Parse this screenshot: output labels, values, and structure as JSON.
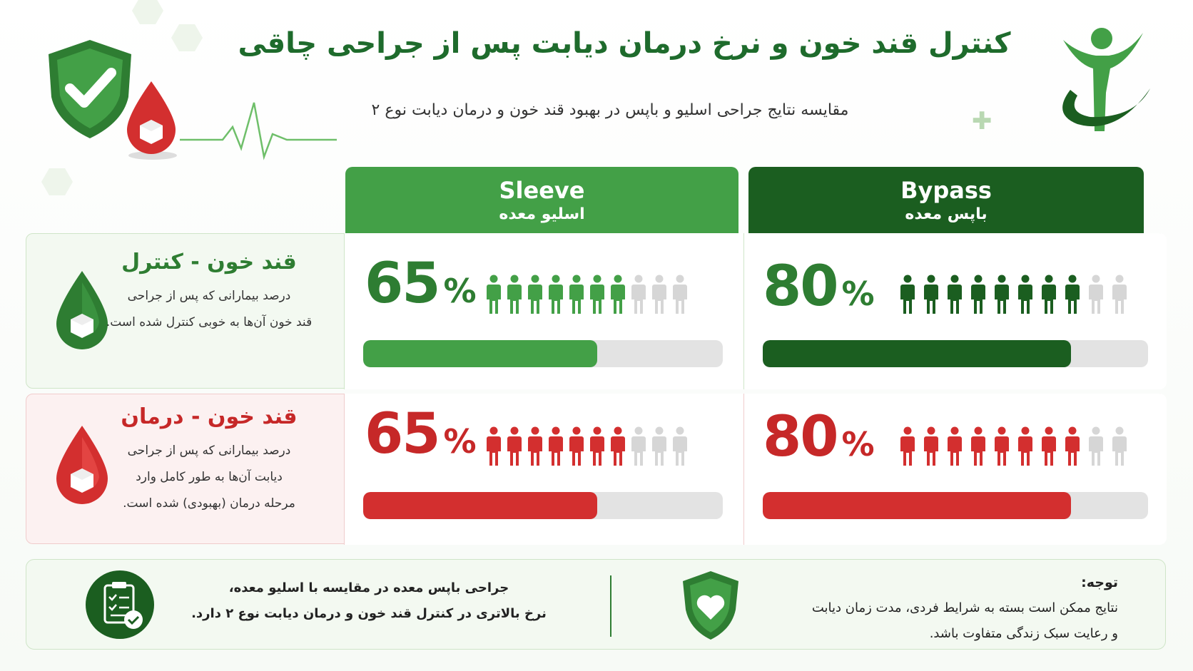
{
  "header": {
    "title": "کنترل قند خون و نرخ درمان دیابت پس از جراحی چاقی",
    "subtitle": "مقایسه نتایج جراحی اسلیو و باپس در بهبود قند خون و درمان دیابت نوع ۲"
  },
  "columns": [
    {
      "en": "Sleeve",
      "fa": "اسلیو معده",
      "color": "#43a047"
    },
    {
      "en": "Bypass",
      "fa": "باپس معده",
      "color": "#1b5e20"
    }
  ],
  "rows": [
    {
      "title": "قند خون - کنترل",
      "desc": [
        "درصد بیمارانی که پس از جراحی",
        "قند خون آن‌ها به خوبی کنترل شده است."
      ],
      "color": "#2e7d32"
    },
    {
      "title": "قند خون - درمان",
      "desc": [
        "درصد بیمارانی که پس از جراحی",
        "دیابت آن‌ها به طور کامل وارد",
        "مرحله درمان (بهبودی) شده است."
      ],
      "color": "#c62828"
    }
  ],
  "chart_data": {
    "type": "bar",
    "categories": [
      "قند خون - کنترل",
      "قند خون - درمان"
    ],
    "series": [
      {
        "name": "Sleeve",
        "values": [
          65,
          65
        ]
      },
      {
        "name": "Bypass",
        "values": [
          80,
          80
        ]
      }
    ],
    "percent_suffix": "%",
    "ylim": [
      0,
      100
    ],
    "people_icons_total": 10,
    "colors": {
      "sleeve_control": "#43a047",
      "bypass_control": "#1b5e20",
      "treatment": "#d32f2f",
      "empty": "#d6d6d6"
    }
  },
  "footer": {
    "summary": [
      "جراحی باپس معده در مقایسه با اسلیو معده،",
      "نرخ بالاتری در کنترل قند خون و درمان دیابت نوع ۲ دارد."
    ],
    "note_title": "توجه:",
    "note": [
      "نتایج ممکن است بسته به شرایط فردی، مدت زمان دیابت",
      "و رعایت سبک زندگی متفاوت باشد."
    ]
  },
  "icons": [
    "shield-check-icon",
    "blood-drop-icon",
    "heartbeat-line-icon",
    "person-logo-icon",
    "person-icon",
    "clipboard-check-icon",
    "shield-heart-icon"
  ]
}
